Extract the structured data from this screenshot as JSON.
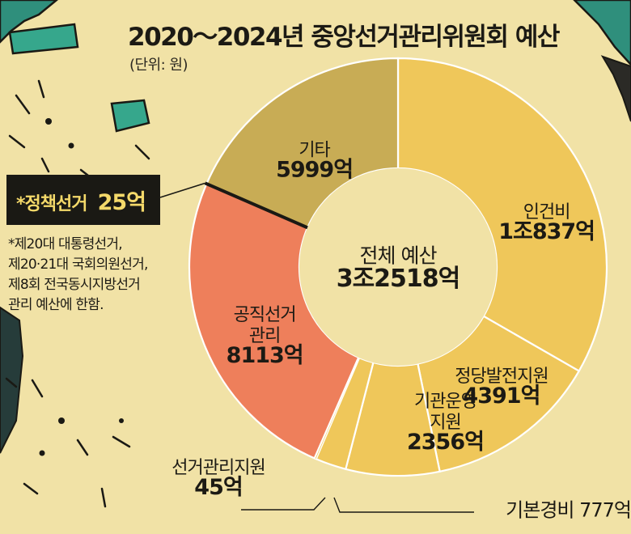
{
  "title": "2020～2024년 중앙선거관리위원회 예산",
  "unit": "(단위: 원)",
  "callout": {
    "label": "*정책선거",
    "value": "25억"
  },
  "footnote": [
    "*제20대 대통령선거,",
    "제20·21대 국회의원선거,",
    "제8회 전국동시지방선거",
    "관리 예산에 한함."
  ],
  "chart_data": {
    "type": "pie",
    "variant": "donut",
    "start_angle": "12 o'clock, clockwise",
    "title": "2020～2024년 중앙선거관리위원회 예산",
    "unit": "(단위: 원)",
    "center": {
      "lines": [
        "전체 예산",
        "3조2518억"
      ]
    },
    "slices": [
      {
        "name": "인건비",
        "lines": [
          "인건비",
          "1조837억"
        ],
        "value": 10837,
        "color": "#efc75a",
        "label_inside": true
      },
      {
        "name": "정당발전지원",
        "lines": [
          "정당발전지원",
          "4391억"
        ],
        "value": 4391,
        "color": "#efc75a",
        "label_inside": true
      },
      {
        "name": "기관운영지원",
        "lines": [
          "기관운영",
          "지원",
          "2356억"
        ],
        "value": 2356,
        "color": "#efc75a",
        "label_inside": true
      },
      {
        "name": "기본경비",
        "lines": [
          "기본경비 777억"
        ],
        "value": 777,
        "color": "#efc75a",
        "label_inside": false
      },
      {
        "name": "선거관리지원",
        "lines": [
          "선거관리지원",
          "45억"
        ],
        "value": 45,
        "color": "#efc75a",
        "label_inside": false
      },
      {
        "name": "공직선거관리",
        "lines": [
          "공직선거",
          "관리",
          "8113억"
        ],
        "value": 8113,
        "color": "#ee7f5b",
        "label_inside": true
      },
      {
        "name": "정책선거",
        "lines": [
          "*정책선거 25억"
        ],
        "value": 25,
        "color": "#1a1914",
        "label_inside": false
      },
      {
        "name": "기타",
        "lines": [
          "기타",
          "5999억"
        ],
        "value": 5999,
        "color": "#c8ac55",
        "label_inside": true
      }
    ]
  }
}
